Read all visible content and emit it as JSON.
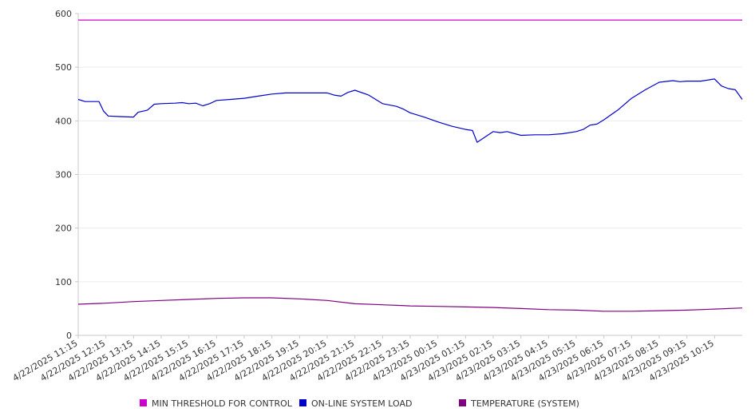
{
  "chart_data": {
    "type": "line",
    "title": "",
    "xlabel": "",
    "ylabel": "",
    "ylim": [
      0,
      600
    ],
    "yticks": [
      0,
      100,
      200,
      300,
      400,
      500,
      600
    ],
    "x_range": [
      "4/22/2025 11:15",
      "4/23/2025 11:15"
    ],
    "x_tick_labels": [
      "4/22/2025 11:15",
      "4/22/2025 12:15",
      "4/22/2025 13:15",
      "4/22/2025 14:15",
      "4/22/2025 15:15",
      "4/22/2025 16:15",
      "4/22/2025 17:15",
      "4/22/2025 18:15",
      "4/22/2025 19:15",
      "4/22/2025 20:15",
      "4/22/2025 21:15",
      "4/22/2025 22:15",
      "4/22/2025 23:15",
      "4/23/2025 00:15",
      "4/23/2025 01:15",
      "4/23/2025 02:15",
      "4/23/2025 03:15",
      "4/23/2025 04:15",
      "4/23/2025 05:15",
      "4/23/2025 06:15",
      "4/23/2025 07:15",
      "4/23/2025 08:15",
      "4/23/2025 09:15",
      "4/23/2025 10:15"
    ],
    "grid": true,
    "legend_position": "bottom",
    "series": [
      {
        "name": "MIN THRESHOLD FOR CONTROL",
        "color": "#cc00cc",
        "x": [
          "4/22/2025 11:15",
          "4/23/2025 11:15"
        ],
        "values": [
          588,
          588
        ]
      },
      {
        "name": "ON-LINE SYSTEM LOAD",
        "color": "#0000cc",
        "x": [
          "4/22/2025 11:15",
          "4/22/2025 11:30",
          "4/22/2025 11:45",
          "4/22/2025 12:00",
          "4/22/2025 12:10",
          "4/22/2025 12:20",
          "4/22/2025 12:45",
          "4/22/2025 13:15",
          "4/22/2025 13:25",
          "4/22/2025 13:45",
          "4/22/2025 14:00",
          "4/22/2025 14:15",
          "4/22/2025 14:45",
          "4/22/2025 15:00",
          "4/22/2025 15:15",
          "4/22/2025 15:30",
          "4/22/2025 15:45",
          "4/22/2025 16:00",
          "4/22/2025 16:15",
          "4/22/2025 16:45",
          "4/22/2025 17:15",
          "4/22/2025 17:45",
          "4/22/2025 18:15",
          "4/22/2025 18:45",
          "4/22/2025 19:15",
          "4/22/2025 19:45",
          "4/22/2025 20:15",
          "4/22/2025 20:30",
          "4/22/2025 20:45",
          "4/22/2025 21:00",
          "4/22/2025 21:15",
          "4/22/2025 21:45",
          "4/22/2025 22:15",
          "4/22/2025 22:45",
          "4/22/2025 23:00",
          "4/22/2025 23:15",
          "4/22/2025 23:45",
          "4/23/2025 00:15",
          "4/23/2025 00:45",
          "4/23/2025 01:15",
          "4/23/2025 01:30",
          "4/23/2025 01:40",
          "4/23/2025 02:15",
          "4/23/2025 02:30",
          "4/23/2025 02:45",
          "4/23/2025 03:15",
          "4/23/2025 03:45",
          "4/23/2025 04:15",
          "4/23/2025 04:45",
          "4/23/2025 05:15",
          "4/23/2025 05:30",
          "4/23/2025 05:45",
          "4/23/2025 06:00",
          "4/23/2025 06:15",
          "4/23/2025 06:45",
          "4/23/2025 07:15",
          "4/23/2025 07:45",
          "4/23/2025 08:15",
          "4/23/2025 08:45",
          "4/23/2025 09:00",
          "4/23/2025 09:15",
          "4/23/2025 09:45",
          "4/23/2025 10:15",
          "4/23/2025 10:30",
          "4/23/2025 10:45",
          "4/23/2025 11:00",
          "4/23/2025 11:15"
        ],
        "values": [
          440,
          436,
          436,
          436,
          418,
          409,
          408,
          407,
          416,
          420,
          431,
          432,
          433,
          434,
          432,
          433,
          428,
          432,
          438,
          440,
          442,
          446,
          450,
          452,
          452,
          452,
          452,
          448,
          446,
          453,
          457,
          448,
          432,
          427,
          422,
          415,
          407,
          398,
          390,
          384,
          382,
          360,
          380,
          378,
          380,
          373,
          374,
          374,
          376,
          380,
          384,
          392,
          394,
          402,
          420,
          442,
          458,
          472,
          475,
          473,
          474,
          474,
          478,
          465,
          460,
          458,
          440
        ]
      },
      {
        "name": "TEMPERATURE (SYSTEM)",
        "color": "#800080",
        "x": [
          "4/22/2025 11:15",
          "4/22/2025 12:15",
          "4/22/2025 13:15",
          "4/22/2025 14:15",
          "4/22/2025 15:15",
          "4/22/2025 16:15",
          "4/22/2025 17:15",
          "4/22/2025 18:15",
          "4/22/2025 19:15",
          "4/22/2025 20:15",
          "4/22/2025 21:15",
          "4/22/2025 22:15",
          "4/22/2025 23:15",
          "4/23/2025 00:15",
          "4/23/2025 01:15",
          "4/23/2025 02:15",
          "4/23/2025 03:15",
          "4/23/2025 04:15",
          "4/23/2025 05:15",
          "4/23/2025 06:15",
          "4/23/2025 07:15",
          "4/23/2025 08:15",
          "4/23/2025 09:15",
          "4/23/2025 10:15",
          "4/23/2025 11:15"
        ],
        "values": [
          58,
          60,
          63,
          65,
          67,
          69,
          70,
          70,
          68,
          65,
          59,
          57,
          55,
          54,
          53,
          52,
          50,
          48,
          47,
          45,
          45,
          46,
          47,
          49,
          51
        ]
      }
    ]
  }
}
